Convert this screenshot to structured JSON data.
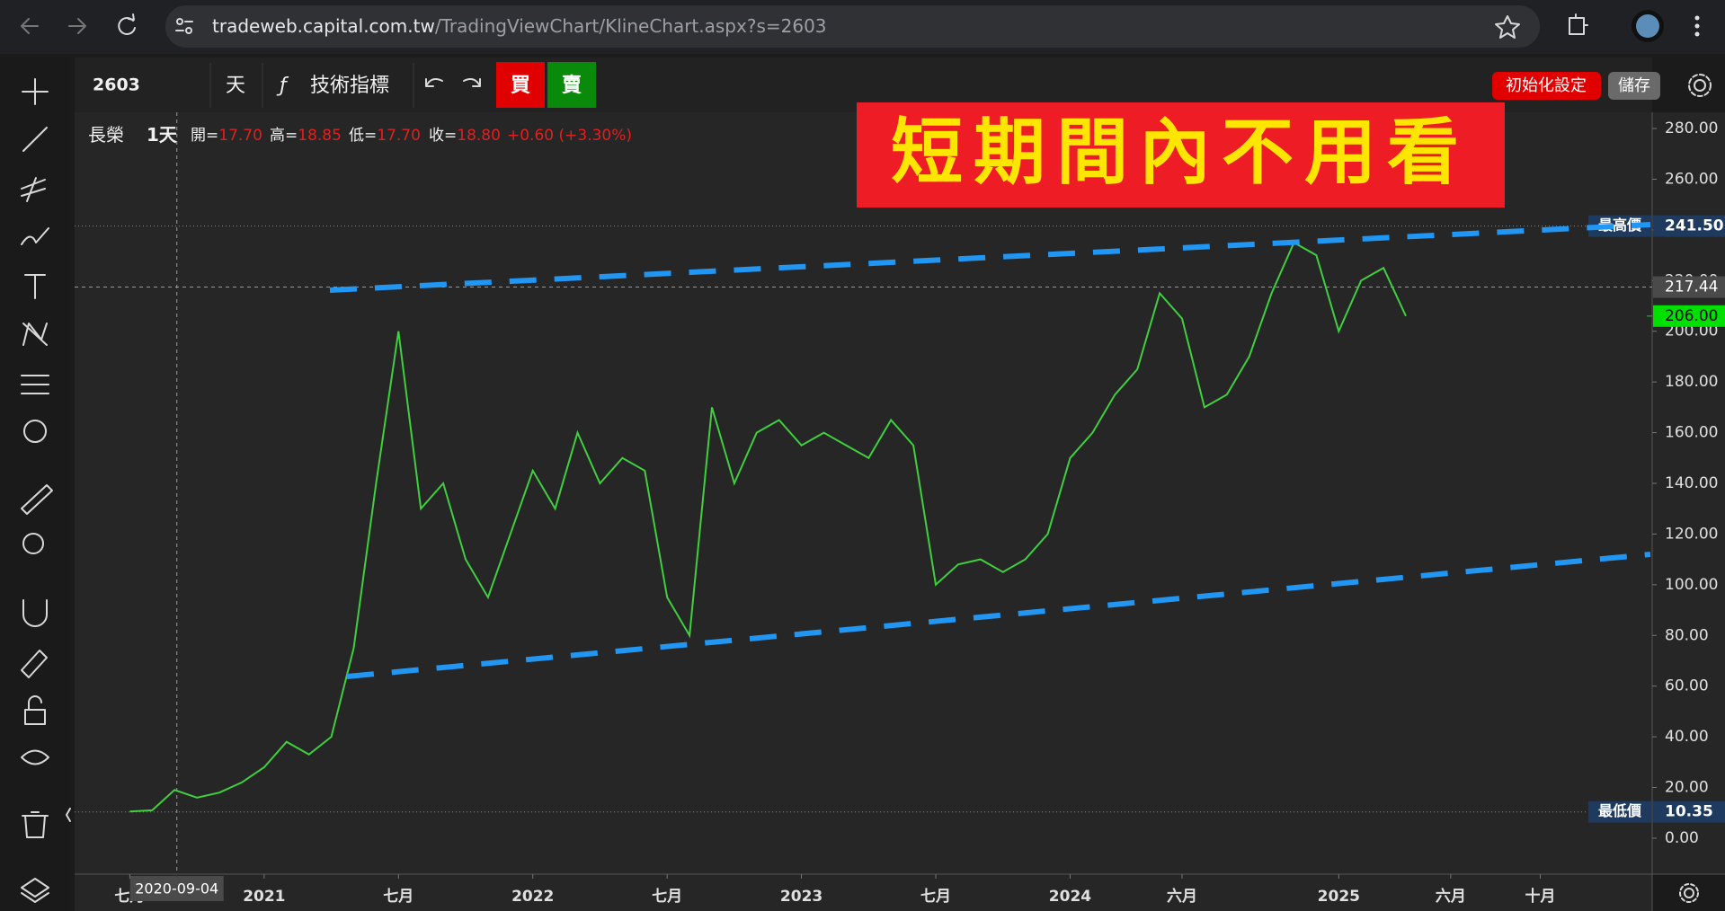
{
  "browser": {
    "url_host": "tradeweb.capital.com.tw",
    "url_path": "/TradingViewChart/KlineChart.aspx?s=2603"
  },
  "toolbar": {
    "symbol": "2603",
    "period": "天",
    "indicators": "技術指標",
    "buy": "買",
    "sell": "賣",
    "reset": "初始化設定",
    "save": "儲存"
  },
  "legend": {
    "name": "長榮",
    "interval": "1天",
    "open_label": "開=",
    "open": "17.70",
    "high_label": "高=",
    "high": "18.85",
    "low_label": "低=",
    "low": "17.70",
    "close_label": "收=",
    "close": "18.80",
    "change": "+0.60 (+3.30%)"
  },
  "banner": "短期間內不用看",
  "chart_data": {
    "type": "line",
    "x": [
      "2020-07",
      "2020-08",
      "2020-09",
      "2020-10",
      "2020-11",
      "2020-12",
      "2021-01",
      "2021-02",
      "2021-03",
      "2021-04",
      "2021-05",
      "2021-06",
      "2021-07",
      "2021-08",
      "2021-09",
      "2021-10",
      "2021-11",
      "2021-12",
      "2022-01",
      "2022-02",
      "2022-03",
      "2022-04",
      "2022-05",
      "2022-06",
      "2022-07",
      "2022-08",
      "2022-09",
      "2022-10",
      "2022-11",
      "2022-12",
      "2023-01",
      "2023-02",
      "2023-03",
      "2023-04",
      "2023-05",
      "2023-06",
      "2023-07",
      "2023-08",
      "2023-09",
      "2023-10",
      "2023-11",
      "2023-12",
      "2024-01",
      "2024-02",
      "2024-03",
      "2024-04",
      "2024-05",
      "2024-06",
      "2024-07",
      "2024-08",
      "2024-09",
      "2024-10",
      "2024-11",
      "2024-12",
      "2025-01",
      "2025-02",
      "2025-03",
      "2025-04"
    ],
    "series": [
      {
        "name": "長榮",
        "color": "#3fcf3f",
        "values": [
          10.5,
          11,
          19,
          16,
          18,
          22,
          28,
          38,
          33,
          40,
          75,
          140,
          200,
          130,
          140,
          110,
          95,
          120,
          145,
          130,
          160,
          140,
          150,
          145,
          95,
          80,
          170,
          140,
          160,
          165,
          155,
          160,
          155,
          150,
          165,
          155,
          100,
          108,
          110,
          105,
          110,
          120,
          150,
          160,
          175,
          185,
          215,
          205,
          170,
          175,
          190,
          215,
          235,
          230,
          200,
          220,
          225,
          206
        ]
      }
    ],
    "xlim": [
      "2020-04-17",
      "2026-03-01"
    ],
    "xticks": [
      {
        "value": "2020-07",
        "label": "七月"
      },
      {
        "value": "2021-01",
        "label": "2021"
      },
      {
        "value": "2021-07",
        "label": "七月"
      },
      {
        "value": "2022-01",
        "label": "2022"
      },
      {
        "value": "2022-07",
        "label": "七月"
      },
      {
        "value": "2023-01",
        "label": "2023"
      },
      {
        "value": "2023-07",
        "label": "七月"
      },
      {
        "value": "2024-01",
        "label": "2024"
      },
      {
        "value": "2024-06",
        "label": "六月"
      },
      {
        "value": "2025-01",
        "label": "2025"
      },
      {
        "value": "2025-06",
        "label": "六月"
      },
      {
        "value": "2025-10",
        "label": "十月"
      }
    ],
    "ylim": [
      -14.2,
      286.4
    ],
    "yticks": [
      {
        "value": 0,
        "label": "0.00"
      },
      {
        "value": 20,
        "label": "20.00"
      },
      {
        "value": 40,
        "label": "40.00"
      },
      {
        "value": 60,
        "label": "60.00"
      },
      {
        "value": 80,
        "label": "80.00"
      },
      {
        "value": 100,
        "label": "100.00"
      },
      {
        "value": 120,
        "label": "120.00"
      },
      {
        "value": 140,
        "label": "140.00"
      },
      {
        "value": 160,
        "label": "160.00"
      },
      {
        "value": 180,
        "label": "180.00"
      },
      {
        "value": 200,
        "label": "200.00"
      },
      {
        "value": 220,
        "label": "220.00"
      },
      {
        "value": 240,
        "label": "240.00"
      },
      {
        "value": 260,
        "label": "260.00"
      },
      {
        "value": 280,
        "label": "280.00"
      }
    ],
    "price_lines": [
      {
        "name": "最高價",
        "value": 241.5,
        "label": "241.50"
      },
      {
        "name": "最低價",
        "value": 10.35,
        "label": "10.35"
      }
    ],
    "crosshair": {
      "x": "2020-09-04",
      "y": 217.44,
      "y_label": "217.44"
    },
    "last_price": {
      "value": 206,
      "label": "206.00",
      "color": "#00e000"
    }
  }
}
